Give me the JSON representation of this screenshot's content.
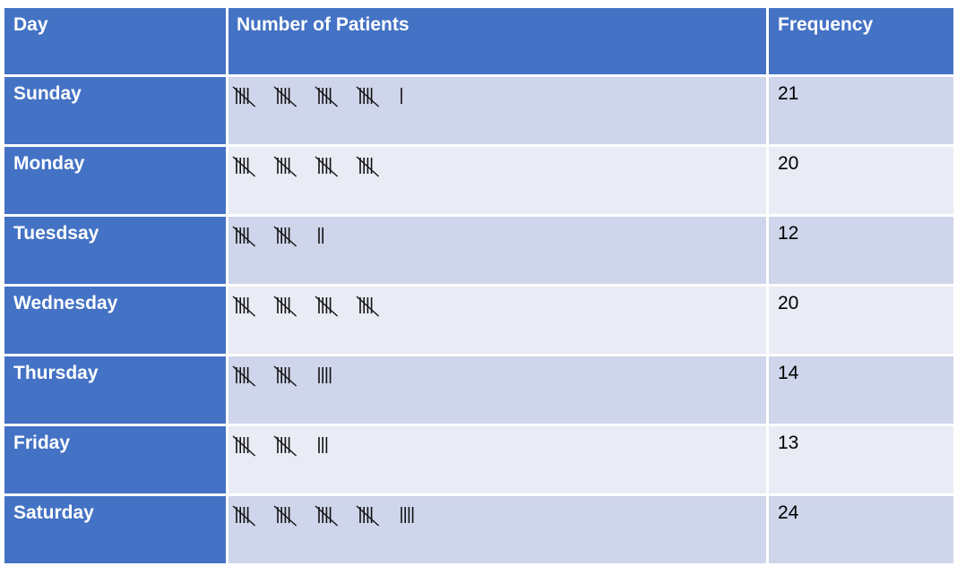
{
  "table": {
    "headers": [
      "Day",
      "Number of Patients",
      "Frequency"
    ],
    "rows": [
      {
        "day": "Sunday",
        "frequency": "21",
        "tally_count": 21
      },
      {
        "day": "Monday",
        "frequency": "20",
        "tally_count": 20
      },
      {
        "day": "Tuesdsay",
        "frequency": "12",
        "tally_count": 12
      },
      {
        "day": "Wednesday",
        "frequency": "20",
        "tally_count": 20
      },
      {
        "day": "Thursday",
        "frequency": "14",
        "tally_count": 14
      },
      {
        "day": "Friday",
        "frequency": "13",
        "tally_count": 13
      },
      {
        "day": "Saturday",
        "frequency": "24",
        "tally_count": 24
      }
    ]
  }
}
